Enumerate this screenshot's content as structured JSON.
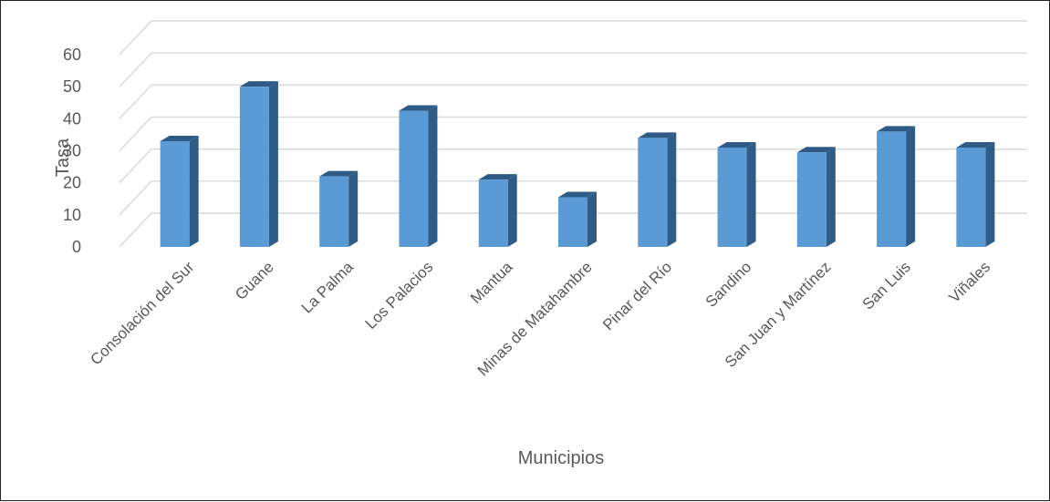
{
  "chart_data": {
    "type": "bar",
    "style": "3d-column",
    "title": "",
    "xlabel": "Municipios",
    "ylabel": "Tasa",
    "ylim": [
      0,
      60
    ],
    "yticks": [
      0,
      10,
      20,
      30,
      40,
      50,
      60
    ],
    "grid": true,
    "legend": "none",
    "bar_color": "#5b9bd5",
    "categories": [
      "Consolación del Sur",
      "Guane",
      "La Palma",
      "Los Palacios",
      "Mantua",
      "Minas de Matahambre",
      "Pinar del Río",
      "Sandino",
      "San Juan y Martínez",
      "San Luis",
      "Viñales"
    ],
    "values": [
      33,
      50,
      22,
      42.5,
      21,
      15.5,
      34,
      31,
      29.5,
      36,
      31
    ]
  }
}
